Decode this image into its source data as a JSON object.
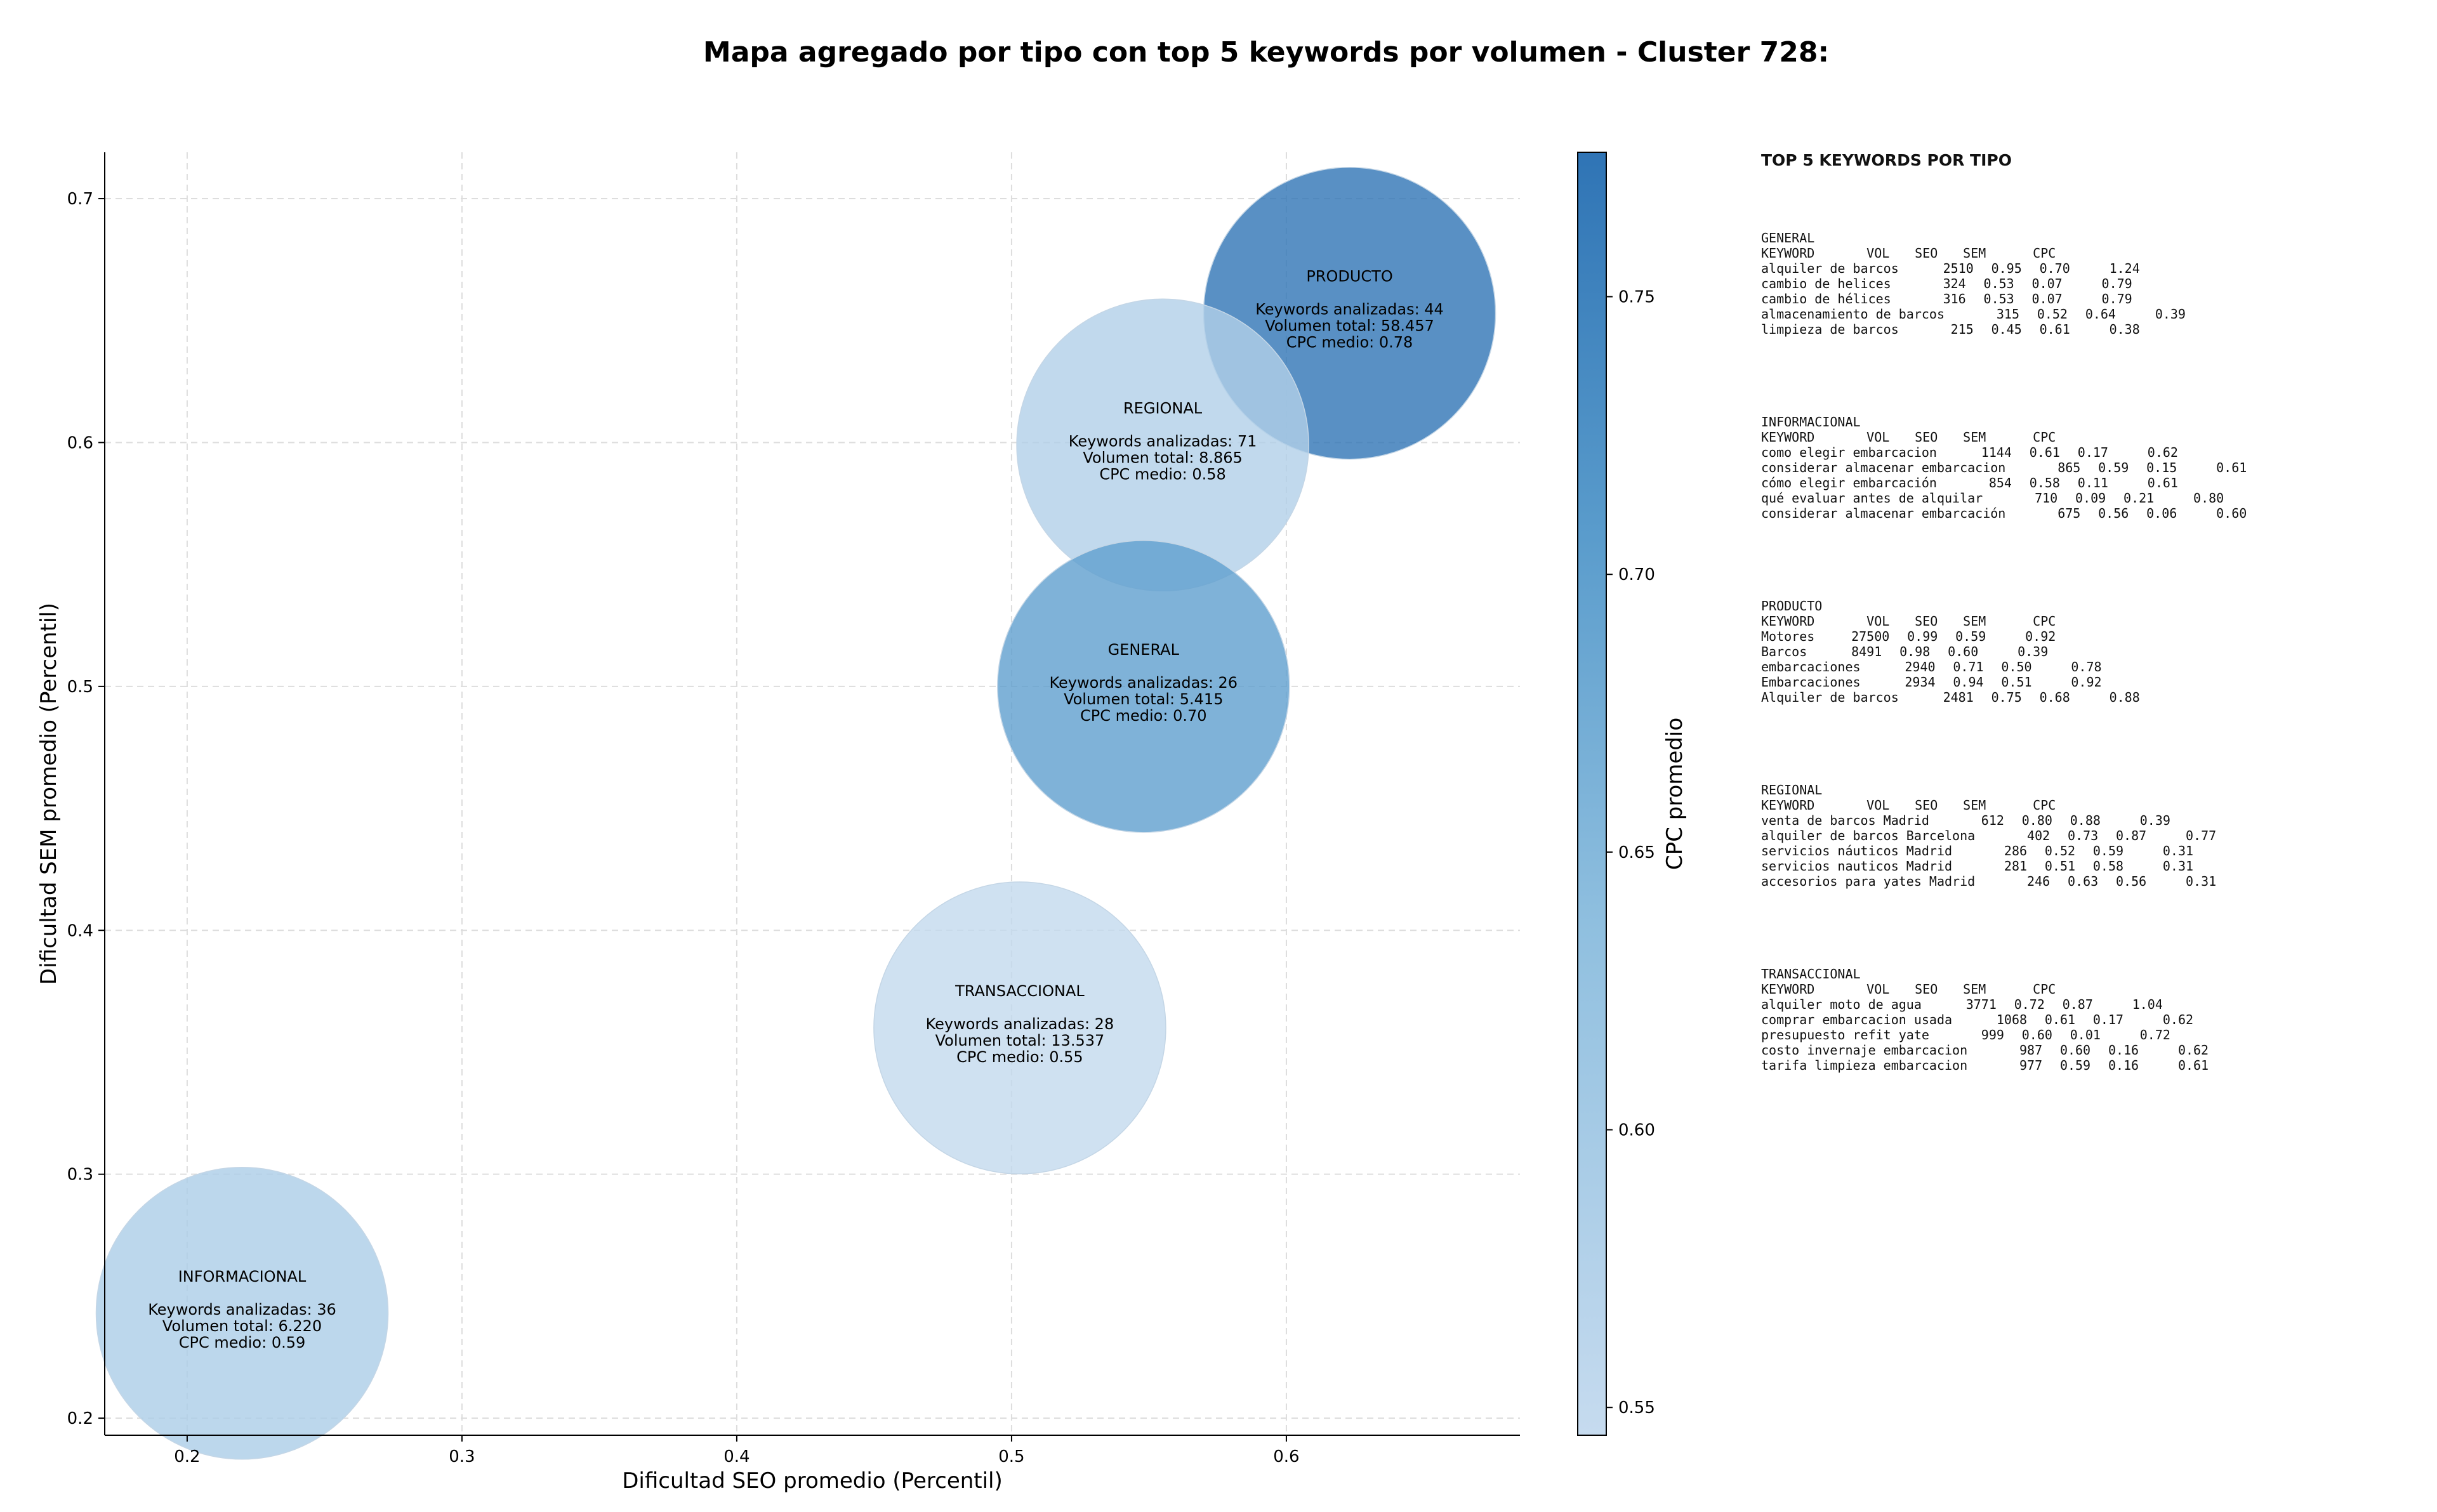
{
  "chart_data": {
    "type": "scatter",
    "title": "Mapa agregado por tipo con top 5 keywords por volumen - Cluster 728:",
    "xlabel": "Dificultad SEO promedio (Percentil)",
    "ylabel": "Dificultad SEM promedio (Percentil)",
    "xlim": [
      0.17,
      0.685
    ],
    "ylim": [
      0.193,
      0.719
    ],
    "xticks": [
      "0.2",
      "0.3",
      "0.4",
      "0.5",
      "0.6"
    ],
    "yticks": [
      "0.2",
      "0.3",
      "0.4",
      "0.5",
      "0.6",
      "0.7"
    ],
    "grid": true,
    "colorbar": {
      "label": "CPC promedio",
      "range": [
        0.545,
        0.776
      ],
      "ticks": [
        "0.55",
        "0.60",
        "0.65",
        "0.70",
        "0.75"
      ],
      "colors": [
        "#c6dbef",
        "#2f74b5"
      ]
    },
    "points": [
      {
        "type_label": "PRODUCTO",
        "x": 0.623,
        "y": 0.653,
        "cpc": 0.78,
        "line1": "Keywords analizadas: 44",
        "line2": "Volumen total: 58.457",
        "line3": "CPC medio: 0.78"
      },
      {
        "type_label": "REGIONAL",
        "x": 0.555,
        "y": 0.599,
        "cpc": 0.58,
        "line1": "Keywords analizadas: 71",
        "line2": "Volumen total: 8.865",
        "line3": "CPC medio: 0.58"
      },
      {
        "type_label": "GENERAL",
        "x": 0.548,
        "y": 0.5,
        "cpc": 0.7,
        "line1": "Keywords analizadas: 26",
        "line2": "Volumen total: 5.415",
        "line3": "CPC medio: 0.70"
      },
      {
        "type_label": "TRANSACCIONAL",
        "x": 0.503,
        "y": 0.36,
        "cpc": 0.55,
        "line1": "Keywords analizadas: 28",
        "line2": "Volumen total: 13.537",
        "line3": "CPC medio: 0.55"
      },
      {
        "type_label": "INFORMACIONAL",
        "x": 0.22,
        "y": 0.243,
        "cpc": 0.59,
        "line1": "Keywords analizadas: 36",
        "line2": "Volumen total: 6.220",
        "line3": "CPC medio: 0.59"
      }
    ]
  },
  "panel": {
    "heading": "TOP 5 KEYWORDS POR TIPO",
    "columns": [
      "KEYWORD",
      "VOL",
      "SEO",
      "SEM",
      "CPC"
    ],
    "groups": [
      {
        "type": "GENERAL",
        "rows": [
          [
            "alquiler de barcos",
            "2510",
            "0.95",
            "0.70",
            "1.24"
          ],
          [
            "cambio de helices",
            "324",
            "0.53",
            "0.07",
            "0.79"
          ],
          [
            "cambio de hélices",
            "316",
            "0.53",
            "0.07",
            "0.79"
          ],
          [
            "almacenamiento de barcos",
            "315",
            "0.52",
            "0.64",
            "0.39"
          ],
          [
            "limpieza de barcos",
            "215",
            "0.45",
            "0.61",
            "0.38"
          ]
        ]
      },
      {
        "type": "INFORMACIONAL",
        "rows": [
          [
            "como elegir embarcacion",
            "1144",
            "0.61",
            "0.17",
            "0.62"
          ],
          [
            "considerar almacenar embarcacion",
            "865",
            "0.59",
            "0.15",
            "0.61"
          ],
          [
            "cómo elegir embarcación",
            "854",
            "0.58",
            "0.11",
            "0.61"
          ],
          [
            "qué evaluar antes de alquilar",
            "710",
            "0.09",
            "0.21",
            "0.80"
          ],
          [
            "considerar almacenar embarcación",
            "675",
            "0.56",
            "0.06",
            "0.60"
          ]
        ]
      },
      {
        "type": "PRODUCTO",
        "rows": [
          [
            "Motores",
            "27500",
            "0.99",
            "0.59",
            "0.92"
          ],
          [
            "Barcos",
            "8491",
            "0.98",
            "0.60",
            "0.39"
          ],
          [
            "embarcaciones",
            "2940",
            "0.71",
            "0.50",
            "0.78"
          ],
          [
            "Embarcaciones",
            "2934",
            "0.94",
            "0.51",
            "0.92"
          ],
          [
            "Alquiler de barcos",
            "2481",
            "0.75",
            "0.68",
            "0.88"
          ]
        ]
      },
      {
        "type": "REGIONAL",
        "rows": [
          [
            "venta de barcos Madrid",
            "612",
            "0.80",
            "0.88",
            "0.39"
          ],
          [
            "alquiler de barcos Barcelona",
            "402",
            "0.73",
            "0.87",
            "0.77"
          ],
          [
            "servicios náuticos Madrid",
            "286",
            "0.52",
            "0.59",
            "0.31"
          ],
          [
            "servicios nauticos Madrid",
            "281",
            "0.51",
            "0.58",
            "0.31"
          ],
          [
            "accesorios para yates Madrid",
            "246",
            "0.63",
            "0.56",
            "0.31"
          ]
        ]
      },
      {
        "type": "TRANSACCIONAL",
        "rows": [
          [
            "alquiler moto de agua",
            "3771",
            "0.72",
            "0.87",
            "1.04"
          ],
          [
            "comprar embarcacion usada",
            "1068",
            "0.61",
            "0.17",
            "0.62"
          ],
          [
            "presupuesto refit yate",
            "999",
            "0.60",
            "0.01",
            "0.72"
          ],
          [
            "costo invernaje embarcacion",
            "987",
            "0.60",
            "0.16",
            "0.62"
          ],
          [
            "tarifa limpieza embarcacion",
            "977",
            "0.59",
            "0.16",
            "0.61"
          ]
        ]
      }
    ]
  }
}
